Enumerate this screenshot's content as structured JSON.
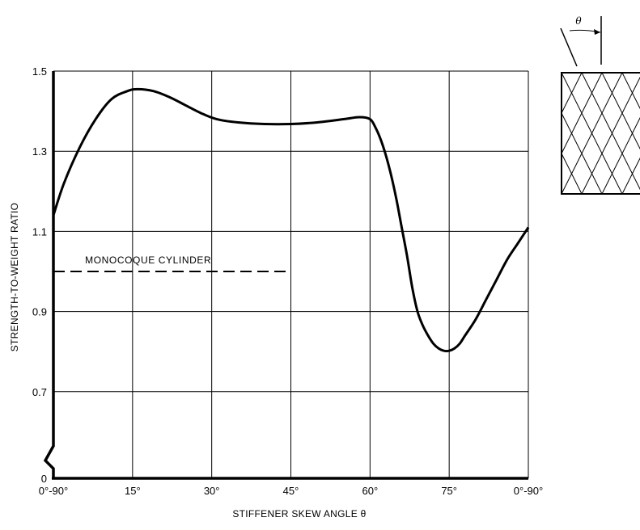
{
  "chart_data": {
    "type": "line",
    "title": "",
    "xlabel": "STIFFENER SKEW ANGLE θ",
    "ylabel": "STRENGTH-TO-WEIGHT RATIO",
    "x_tick_labels": [
      "0°-90°",
      "15°",
      "30°",
      "45°",
      "60°",
      "75°",
      "0°-90°"
    ],
    "x_tick_values": [
      0,
      15,
      30,
      45,
      60,
      75,
      90
    ],
    "y_tick_labels": [
      "0",
      "0.7",
      "0.9",
      "1.1",
      "1.3",
      "1.5"
    ],
    "y_tick_values": [
      0.5,
      0.7,
      0.9,
      1.1,
      1.3,
      1.5
    ],
    "y_axis_break": true,
    "xlim": [
      0,
      90
    ],
    "ylim": [
      0.5,
      1.5
    ],
    "grid": true,
    "series": [
      {
        "style": "solid",
        "x": [
          0,
          2,
          5,
          8,
          11,
          14,
          16,
          19,
          22,
          25,
          28,
          31,
          35,
          40,
          45,
          50,
          55,
          58,
          60,
          61,
          62,
          63,
          64,
          65,
          66,
          67,
          68,
          69,
          70,
          71,
          72,
          73,
          74,
          75,
          76,
          77,
          78,
          80,
          82,
          84,
          86,
          88,
          90
        ],
        "y": [
          1.14,
          1.22,
          1.31,
          1.38,
          1.43,
          1.45,
          1.455,
          1.45,
          1.435,
          1.415,
          1.395,
          1.38,
          1.372,
          1.368,
          1.368,
          1.372,
          1.38,
          1.385,
          1.38,
          1.36,
          1.33,
          1.29,
          1.24,
          1.18,
          1.11,
          1.04,
          0.96,
          0.9,
          0.865,
          0.84,
          0.82,
          0.808,
          0.802,
          0.802,
          0.808,
          0.82,
          0.84,
          0.88,
          0.93,
          0.98,
          1.03,
          1.07,
          1.11
        ]
      },
      {
        "name": "MONOCOQUE CYLINDER",
        "style": "dashed",
        "x": [
          0,
          45
        ],
        "y": [
          1.0,
          1.0
        ]
      }
    ],
    "annotations": [
      {
        "text": "MONOCOQUE CYLINDER",
        "x": 6,
        "y": 1.0
      }
    ],
    "inset": {
      "symbol": "θ",
      "description_pattern": "diamond-lattice"
    }
  }
}
